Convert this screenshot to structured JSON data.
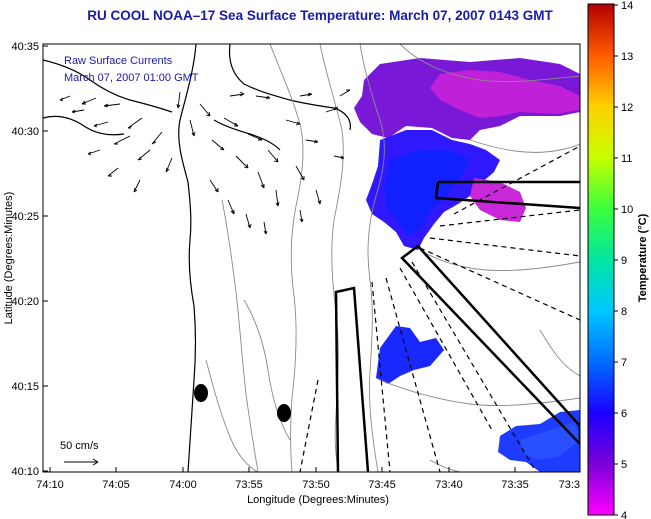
{
  "title": "RU COOL  NOAA–17  Sea Surface Temperature:  March 07, 2007 0143 GMT",
  "overlay": {
    "line1": "Raw Surface Currents",
    "line2": "March 07, 2007 01:00 GMT"
  },
  "scale_label": "50 cm/s",
  "axes": {
    "xlabel": "Longitude (Degrees:Minutes)",
    "ylabel": "Latitude (Degrees:Minutes)",
    "xticks": [
      "74:10",
      "74:05",
      "74:00",
      "73:55",
      "73:50",
      "73:45",
      "73:40",
      "73:35",
      "73:3"
    ],
    "yticks": [
      "40:35",
      "40:30",
      "40:25",
      "40:20",
      "40:15",
      "40:10"
    ]
  },
  "colorbar": {
    "label": "Temperature (°C)",
    "ticks": [
      "14",
      "13",
      "12",
      "11",
      "10",
      "9",
      "8",
      "7",
      "6",
      "5",
      "4"
    ],
    "min": 4,
    "max": 14
  },
  "colors": {
    "title": "#1a1aa8",
    "overlay_text": "#1a1aa8"
  }
}
